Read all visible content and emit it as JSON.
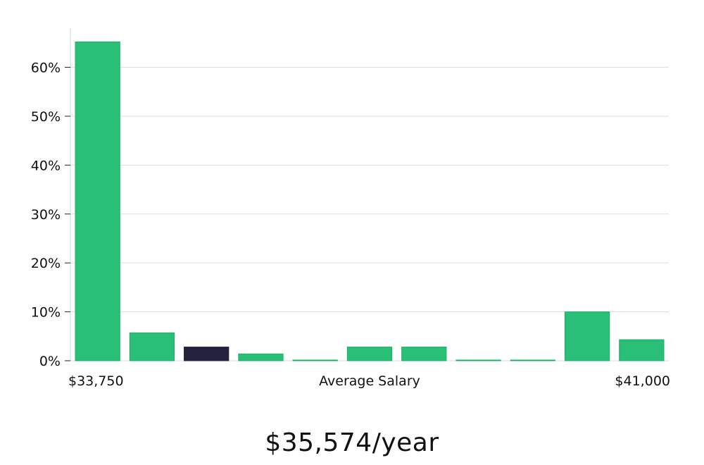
{
  "headline": "$35,574/year",
  "chart_data": {
    "type": "bar",
    "title": "",
    "xlabel": "Average Salary",
    "ylabel": "",
    "x_range_labels": [
      "$33,750",
      "$41,000"
    ],
    "categories": [
      "",
      "",
      "",
      "",
      "",
      "",
      "",
      "",
      "",
      "",
      ""
    ],
    "values": [
      65.2,
      5.7,
      2.8,
      1.4,
      0.1,
      2.8,
      2.8,
      0.1,
      0.1,
      10.0,
      4.3
    ],
    "highlight_index": 2,
    "ylim": [
      0,
      68
    ],
    "yticks": [
      0,
      10,
      20,
      30,
      40,
      50,
      60
    ],
    "ytick_suffix": "%",
    "grid": true,
    "legend": "none",
    "colors": {
      "bar": "#2ABF76",
      "bar_edge": "#1FAE68",
      "highlight": "#24223F",
      "grid": "#DDDDDD",
      "axis": "#D5D5D5"
    }
  }
}
